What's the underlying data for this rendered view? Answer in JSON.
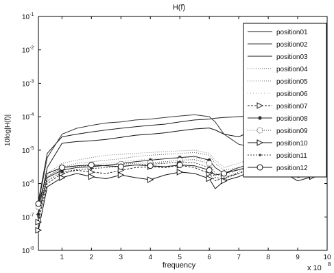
{
  "chart_data": {
    "type": "line",
    "title": "H(f)",
    "xlabel": "frequency",
    "ylabel": "10log|H(f)|",
    "x_multiplier_label": "x 10",
    "x_multiplier_exponent": "8",
    "xlim": [
      0.2,
      10
    ],
    "ylim": [
      1e-08,
      0.1
    ],
    "yscale": "log",
    "grid": false,
    "legend_position": "top-right",
    "x_ticks": [
      1,
      2,
      3,
      4,
      5,
      6,
      7,
      8,
      9,
      10
    ],
    "y_ticks": [
      {
        "value": 0.1,
        "base": "10",
        "exp": "-1"
      },
      {
        "value": 0.01,
        "base": "10",
        "exp": "-2"
      },
      {
        "value": 0.001,
        "base": "10",
        "exp": "-3"
      },
      {
        "value": 0.0001,
        "base": "10",
        "exp": "-4"
      },
      {
        "value": 1e-05,
        "base": "10",
        "exp": "-5"
      },
      {
        "value": 1e-06,
        "base": "10",
        "exp": "-6"
      },
      {
        "value": 1e-07,
        "base": "10",
        "exp": "-7"
      },
      {
        "value": 1e-08,
        "base": "10",
        "exp": "-8"
      }
    ],
    "x": [
      0.2,
      0.5,
      1.0,
      1.5,
      2.0,
      2.5,
      3.0,
      3.5,
      4.0,
      4.5,
      5.0,
      5.5,
      6.0,
      6.2,
      6.5,
      7.0,
      7.5,
      8.0,
      8.5,
      9.0,
      9.5,
      10.0
    ],
    "series": [
      {
        "name": "position01",
        "color": "#1a1a1a",
        "dash": "",
        "marker": "none",
        "values": [
          3e-07,
          8e-06,
          2.5e-05,
          3e-05,
          3.5e-05,
          4e-05,
          4.5e-05,
          5e-05,
          5.5e-05,
          6e-05,
          7e-05,
          8e-05,
          8.5e-05,
          9e-05,
          9.5e-05,
          0.0001,
          0.000105,
          0.00011,
          0.00012,
          0.00013,
          0.00014,
          0.00015
        ]
      },
      {
        "name": "position02",
        "color": "#333333",
        "dash": "",
        "marker": "none",
        "values": [
          2.5e-07,
          6e-06,
          3e-05,
          4.5e-05,
          5.5e-05,
          6.5e-05,
          7e-05,
          8e-05,
          8.5e-05,
          9.5e-05,
          0.000105,
          0.000115,
          0.0001,
          7e-05,
          3e-05,
          1.5e-05,
          1.2e-05,
          8e-06,
          1.2e-05,
          1.5e-05,
          1.2e-05,
          1.3e-05
        ]
      },
      {
        "name": "position03",
        "color": "#111111",
        "dash": "",
        "marker": "none",
        "values": [
          1.5e-07,
          3e-06,
          1.6e-05,
          1.8e-05,
          1.9e-05,
          2.1e-05,
          2.4e-05,
          2.8e-05,
          3e-05,
          3.3e-05,
          3.8e-05,
          4.3e-05,
          4.6e-05,
          4e-05,
          3e-05,
          2.5e-05,
          4e-05,
          6e-05,
          7e-05,
          7.5e-05,
          8e-05,
          8e-05
        ]
      },
      {
        "name": "position04",
        "color": "#555555",
        "dash": "1,2",
        "marker": "none",
        "values": [
          1.8e-07,
          1.5e-06,
          3e-06,
          4e-06,
          4.5e-06,
          5e-06,
          5.5e-06,
          6.5e-06,
          7e-06,
          7.5e-06,
          8e-06,
          8.5e-06,
          7e-06,
          4e-06,
          2.5e-06,
          3e-06,
          4e-06,
          5e-06,
          4e-06,
          2.5e-06,
          3.5e-06,
          4e-06
        ]
      },
      {
        "name": "position05",
        "color": "#777777",
        "dash": "1,2",
        "marker": "none",
        "values": [
          2e-07,
          2e-06,
          4e-06,
          5e-06,
          6e-06,
          7e-06,
          7.5e-06,
          8e-06,
          8.5e-06,
          9e-06,
          9.5e-06,
          1e-05,
          8e-06,
          5e-06,
          3e-06,
          4e-06,
          6e-06,
          7e-06,
          5.5e-06,
          3e-06,
          4.5e-06,
          5e-06
        ]
      },
      {
        "name": "position06",
        "color": "#999999",
        "dash": "1,3",
        "marker": "none",
        "values": [
          1.6e-07,
          1.2e-06,
          2.5e-06,
          3e-06,
          3.5e-06,
          4e-06,
          4.5e-06,
          5e-06,
          5.5e-06,
          5.5e-06,
          6e-06,
          6e-06,
          4.5e-06,
          2e-06,
          1.8e-06,
          2.5e-06,
          3e-06,
          3.5e-06,
          2.5e-06,
          1.5e-06,
          2.5e-06,
          3e-06
        ]
      },
      {
        "name": "position07",
        "color": "#222222",
        "dash": "3,2",
        "marker": "triangle",
        "values": [
          7e-08,
          1e-06,
          2e-06,
          2.5e-06,
          2.2e-06,
          2e-06,
          2.5e-06,
          3e-06,
          3.2e-06,
          3e-06,
          3.5e-06,
          3e-06,
          2e-06,
          1.2e-06,
          1.5e-06,
          2e-06,
          3e-06,
          3.5e-06,
          3e-06,
          1.5e-06,
          2e-06,
          2.5e-06
        ]
      },
      {
        "name": "position08",
        "color": "#222222",
        "dash": "",
        "marker": "star",
        "values": [
          1.2e-07,
          1.5e-06,
          2.5e-06,
          3e-06,
          3.2e-06,
          3.5e-06,
          4e-06,
          4.5e-06,
          5e-06,
          5.5e-06,
          6e-06,
          6.5e-06,
          5e-06,
          3e-06,
          2e-06,
          3e-06,
          4e-06,
          5e-06,
          4e-06,
          2.5e-06,
          3.5e-06,
          4e-06
        ]
      },
      {
        "name": "position09",
        "color": "#444444",
        "dash": "1,2",
        "marker": "circle-dot",
        "values": [
          2e-07,
          1.6e-06,
          3e-06,
          3.2e-06,
          3.5e-06,
          3.5e-06,
          3.8e-06,
          4e-06,
          4.2e-06,
          4.5e-06,
          5e-06,
          5.2e-06,
          4e-06,
          2e-06,
          1.5e-06,
          2.2e-06,
          3.2e-06,
          4e-06,
          3e-06,
          1.8e-06,
          2.8e-06,
          3.2e-06
        ]
      },
      {
        "name": "position10",
        "color": "#111111",
        "dash": "",
        "marker": "triangle",
        "values": [
          4e-08,
          8e-07,
          1.5e-06,
          2e-06,
          1.6e-06,
          1.4e-06,
          1.8e-06,
          1.5e-06,
          1.3e-06,
          1.8e-06,
          2.2e-06,
          2e-06,
          1.4e-06,
          7e-07,
          1.2e-06,
          1.6e-06,
          2.5e-06,
          3e-06,
          2.2e-06,
          1.2e-06,
          1.6e-06,
          2e-06
        ]
      },
      {
        "name": "position11",
        "color": "#333333",
        "dash": "2,2",
        "marker": "asterisk",
        "values": [
          1e-07,
          1.2e-06,
          2.2e-06,
          2.6e-06,
          2.8e-06,
          3e-06,
          3.3e-06,
          3.6e-06,
          3.8e-06,
          4e-06,
          4.5e-06,
          4.2e-06,
          3e-06,
          1.5e-06,
          1.4e-06,
          2e-06,
          3e-06,
          3.8e-06,
          3e-06,
          1.6e-06,
          2.4e-06,
          2.8e-06
        ]
      },
      {
        "name": "position12",
        "color": "#111111",
        "dash": "",
        "marker": "circle",
        "values": [
          2.5e-07,
          2e-06,
          3e-06,
          3.4e-06,
          3.6e-06,
          3.4e-06,
          3.2e-06,
          3.6e-06,
          3.4e-06,
          3.2e-06,
          3.6e-06,
          3.4e-06,
          2.5e-06,
          1.8e-06,
          2e-06,
          2.6e-06,
          3.4e-06,
          4e-06,
          3.2e-06,
          2e-06,
          2.8e-06,
          3e-06
        ]
      }
    ]
  }
}
